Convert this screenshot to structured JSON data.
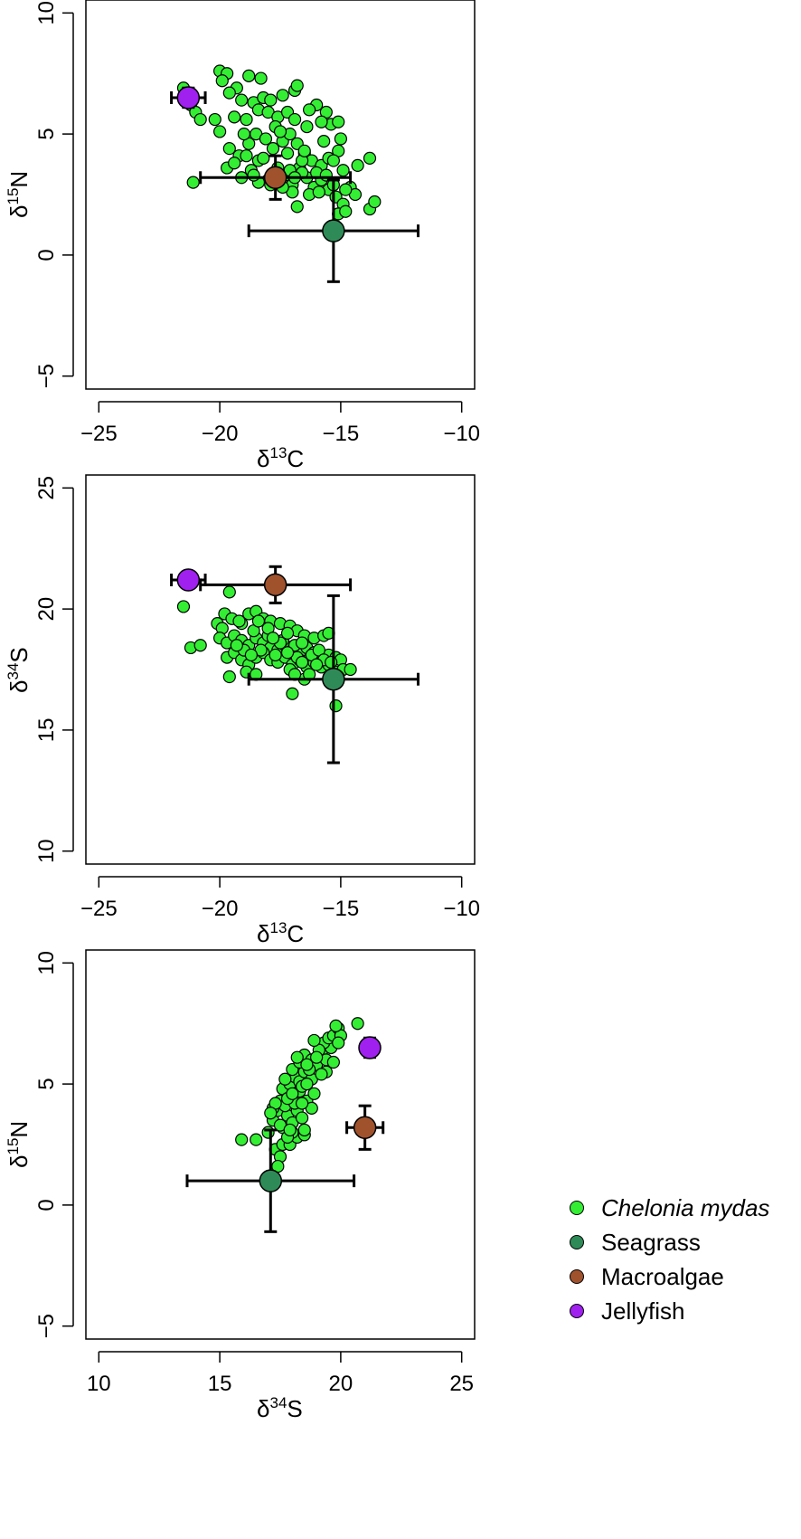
{
  "colors": {
    "chelonia": "#33ee33",
    "seagrass": "#2e8b57",
    "macroalgae": "#a0522d",
    "jellyfish": "#a020f0"
  },
  "legend": [
    {
      "label": "Chelonia mydas",
      "color": "#33ee33",
      "italic": true
    },
    {
      "label": "Seagrass",
      "color": "#2e8b57",
      "italic": false
    },
    {
      "label": "Macroalgae",
      "color": "#a0522d",
      "italic": false
    },
    {
      "label": "Jellyfish",
      "color": "#a020f0",
      "italic": false
    }
  ],
  "chart_data": [
    {
      "type": "scatter",
      "xlabel": "δ13C",
      "ylabel": "δ15N",
      "xlim": [
        -25,
        -10
      ],
      "ylim": [
        -5,
        10
      ],
      "xticks": [
        "−25",
        "−20",
        "−15",
        "−10"
      ],
      "yticks": [
        "−5",
        "0",
        "5",
        "10"
      ],
      "points": [
        [
          -21.5,
          6.9
        ],
        [
          -21.2,
          6.2
        ],
        [
          -21.0,
          5.9
        ],
        [
          -20.8,
          5.6
        ],
        [
          -21.1,
          3.0
        ],
        [
          -20.0,
          7.6
        ],
        [
          -19.7,
          7.5
        ],
        [
          -19.9,
          7.2
        ],
        [
          -19.3,
          6.9
        ],
        [
          -18.8,
          7.4
        ],
        [
          -18.3,
          7.3
        ],
        [
          -19.6,
          6.7
        ],
        [
          -19.1,
          6.4
        ],
        [
          -18.6,
          6.3
        ],
        [
          -18.2,
          6.5
        ],
        [
          -17.9,
          6.4
        ],
        [
          -17.4,
          6.6
        ],
        [
          -16.9,
          6.8
        ],
        [
          -16.8,
          7.0
        ],
        [
          -20.2,
          5.6
        ],
        [
          -20.0,
          5.1
        ],
        [
          -19.4,
          5.7
        ],
        [
          -18.9,
          5.6
        ],
        [
          -18.4,
          6.0
        ],
        [
          -18.0,
          5.9
        ],
        [
          -17.6,
          5.7
        ],
        [
          -17.2,
          5.9
        ],
        [
          -16.9,
          5.6
        ],
        [
          -16.4,
          5.3
        ],
        [
          -16.0,
          6.2
        ],
        [
          -15.6,
          5.9
        ],
        [
          -15.4,
          5.4
        ],
        [
          -15.1,
          5.5
        ],
        [
          -19.6,
          4.4
        ],
        [
          -19.2,
          4.1
        ],
        [
          -18.8,
          4.6
        ],
        [
          -18.5,
          5.0
        ],
        [
          -18.1,
          4.8
        ],
        [
          -17.8,
          4.4
        ],
        [
          -17.4,
          4.7
        ],
        [
          -17.1,
          5.0
        ],
        [
          -16.8,
          4.6
        ],
        [
          -16.5,
          4.2
        ],
        [
          -16.2,
          3.9
        ],
        [
          -15.8,
          3.7
        ],
        [
          -15.5,
          4.0
        ],
        [
          -15.1,
          4.3
        ],
        [
          -14.9,
          3.5
        ],
        [
          -14.3,
          3.7
        ],
        [
          -13.8,
          4.0
        ],
        [
          -19.7,
          3.6
        ],
        [
          -19.4,
          3.8
        ],
        [
          -19.1,
          3.2
        ],
        [
          -18.7,
          3.5
        ],
        [
          -18.4,
          3.9
        ],
        [
          -18.0,
          3.1
        ],
        [
          -17.6,
          3.6
        ],
        [
          -17.3,
          3.3
        ],
        [
          -17.0,
          2.9
        ],
        [
          -16.7,
          3.6
        ],
        [
          -16.4,
          3.2
        ],
        [
          -16.1,
          2.8
        ],
        [
          -15.8,
          3.1
        ],
        [
          -15.5,
          2.7
        ],
        [
          -15.2,
          2.4
        ],
        [
          -14.9,
          2.1
        ],
        [
          -14.6,
          2.8
        ],
        [
          -14.4,
          2.5
        ],
        [
          -13.8,
          1.9
        ],
        [
          -13.6,
          2.2
        ],
        [
          -17.0,
          2.6
        ],
        [
          -16.8,
          2.0
        ],
        [
          -16.3,
          2.5
        ],
        [
          -15.9,
          2.6
        ],
        [
          -15.1,
          1.7
        ],
        [
          -14.8,
          1.8
        ],
        [
          -18.4,
          3.0
        ],
        [
          -17.9,
          2.9
        ],
        [
          -17.1,
          3.5
        ],
        [
          -16.6,
          3.9
        ],
        [
          -16.0,
          3.4
        ],
        [
          -15.3,
          2.9
        ],
        [
          -14.8,
          2.7
        ],
        [
          -18.9,
          4.1
        ],
        [
          -17.2,
          4.2
        ],
        [
          -16.5,
          4.3
        ],
        [
          -15.7,
          4.7
        ],
        [
          -15.0,
          4.8
        ],
        [
          -17.7,
          5.3
        ],
        [
          -16.3,
          6.0
        ],
        [
          -16.6,
          3.4
        ],
        [
          -17.4,
          2.8
        ],
        [
          -18.2,
          4.0
        ],
        [
          -19.0,
          5.0
        ],
        [
          -17.5,
          5.1
        ],
        [
          -15.8,
          5.5
        ],
        [
          -16.9,
          3.2
        ],
        [
          -15.6,
          3.3
        ],
        [
          -15.3,
          3.9
        ],
        [
          -18.6,
          3.3
        ]
      ],
      "sources": [
        {
          "name": "Seagrass",
          "x": -15.3,
          "y": 1.0,
          "xerr": 3.5,
          "yerr": 2.1
        },
        {
          "name": "Macroalgae",
          "x": -17.7,
          "y": 3.2,
          "xerr": 3.1,
          "yerr": 0.9
        },
        {
          "name": "Jellyfish",
          "x": -21.3,
          "y": 6.5,
          "xerr": 0.7,
          "yerr": 0.4
        }
      ]
    },
    {
      "type": "scatter",
      "xlabel": "δ13C",
      "ylabel": "δ34S",
      "xlim": [
        -25,
        -10
      ],
      "ylim": [
        10,
        25
      ],
      "xticks": [
        "−25",
        "−20",
        "−15",
        "−10"
      ],
      "yticks": [
        "10",
        "15",
        "20",
        "25"
      ],
      "points": [
        [
          -21.5,
          20.1
        ],
        [
          -21.2,
          18.4
        ],
        [
          -20.8,
          18.5
        ],
        [
          -19.6,
          20.7
        ],
        [
          -20.1,
          19.4
        ],
        [
          -19.9,
          19.2
        ],
        [
          -19.8,
          19.8
        ],
        [
          -19.5,
          19.6
        ],
        [
          -19.1,
          19.4
        ],
        [
          -18.8,
          19.8
        ],
        [
          -18.5,
          19.9
        ],
        [
          -18.2,
          19.6
        ],
        [
          -17.9,
          19.5
        ],
        [
          -17.5,
          19.4
        ],
        [
          -17.1,
          19.3
        ],
        [
          -16.8,
          19.1
        ],
        [
          -16.5,
          18.9
        ],
        [
          -16.1,
          18.8
        ],
        [
          -15.7,
          18.9
        ],
        [
          -15.5,
          19.0
        ],
        [
          -20.0,
          18.8
        ],
        [
          -19.7,
          18.6
        ],
        [
          -19.4,
          18.9
        ],
        [
          -19.1,
          18.7
        ],
        [
          -18.8,
          18.5
        ],
        [
          -18.5,
          18.8
        ],
        [
          -18.2,
          18.6
        ],
        [
          -17.9,
          18.4
        ],
        [
          -17.6,
          18.3
        ],
        [
          -17.3,
          18.5
        ],
        [
          -17.0,
          18.3
        ],
        [
          -16.7,
          18.2
        ],
        [
          -16.4,
          18.4
        ],
        [
          -16.1,
          18.2
        ],
        [
          -15.8,
          18.0
        ],
        [
          -15.5,
          18.1
        ],
        [
          -15.2,
          18.0
        ],
        [
          -15.0,
          17.9
        ],
        [
          -19.7,
          18.0
        ],
        [
          -19.4,
          18.2
        ],
        [
          -19.1,
          17.9
        ],
        [
          -18.8,
          17.7
        ],
        [
          -18.5,
          18.0
        ],
        [
          -18.2,
          18.2
        ],
        [
          -17.9,
          17.9
        ],
        [
          -17.6,
          17.8
        ],
        [
          -17.3,
          18.0
        ],
        [
          -17.0,
          17.7
        ],
        [
          -16.7,
          17.9
        ],
        [
          -16.4,
          17.6
        ],
        [
          -16.1,
          17.8
        ],
        [
          -15.8,
          17.6
        ],
        [
          -15.5,
          17.7
        ],
        [
          -15.2,
          17.4
        ],
        [
          -14.9,
          17.5
        ],
        [
          -14.6,
          17.5
        ],
        [
          -19.6,
          17.2
        ],
        [
          -18.9,
          17.4
        ],
        [
          -18.5,
          17.3
        ],
        [
          -17.0,
          16.5
        ],
        [
          -16.5,
          17.1
        ],
        [
          -15.2,
          16.0
        ],
        [
          -18.0,
          18.9
        ],
        [
          -17.4,
          18.7
        ],
        [
          -16.9,
          18.5
        ],
        [
          -16.6,
          18.6
        ],
        [
          -16.2,
          18.1
        ],
        [
          -15.9,
          18.3
        ],
        [
          -18.6,
          19.1
        ],
        [
          -18.0,
          19.2
        ],
        [
          -17.2,
          19.0
        ],
        [
          -19.2,
          19.5
        ],
        [
          -18.3,
          18.3
        ],
        [
          -17.7,
          18.1
        ],
        [
          -17.1,
          17.5
        ],
        [
          -16.3,
          17.3
        ],
        [
          -15.7,
          17.9
        ],
        [
          -19.0,
          18.3
        ],
        [
          -18.7,
          18.1
        ],
        [
          -17.5,
          18.6
        ],
        [
          -16.8,
          18.0
        ],
        [
          -16.0,
          17.7
        ],
        [
          -15.4,
          17.8
        ],
        [
          -15.1,
          17.2
        ],
        [
          -18.4,
          19.5
        ],
        [
          -17.8,
          18.8
        ],
        [
          -17.2,
          18.2
        ],
        [
          -16.6,
          17.8
        ],
        [
          -19.3,
          18.5
        ],
        [
          -16.9,
          17.3
        ]
      ],
      "sources": [
        {
          "name": "Seagrass",
          "x": -15.3,
          "y": 17.1,
          "xerr": 3.5,
          "yerr": 3.45
        },
        {
          "name": "Macroalgae",
          "x": -17.7,
          "y": 21.0,
          "xerr": 3.1,
          "yerr": 0.75
        },
        {
          "name": "Jellyfish",
          "x": -21.3,
          "y": 21.2,
          "xerr": 0.7,
          "yerr": 0.2
        }
      ]
    },
    {
      "type": "scatter",
      "xlabel": "δ34S",
      "ylabel": "δ15N",
      "xlim": [
        10,
        25
      ],
      "ylim": [
        -5,
        10
      ],
      "xticks": [
        "10",
        "15",
        "20",
        "25"
      ],
      "yticks": [
        "−5",
        "0",
        "5",
        "10"
      ],
      "points": [
        [
          15.9,
          2.7
        ],
        [
          16.5,
          2.7
        ],
        [
          17.0,
          3.0
        ],
        [
          17.3,
          2.3
        ],
        [
          17.5,
          2.0
        ],
        [
          17.6,
          2.5
        ],
        [
          17.4,
          1.6
        ],
        [
          17.9,
          2.5
        ],
        [
          18.2,
          2.8
        ],
        [
          18.5,
          2.9
        ],
        [
          18.5,
          3.1
        ],
        [
          17.2,
          3.5
        ],
        [
          17.4,
          3.9
        ],
        [
          17.6,
          3.2
        ],
        [
          17.8,
          3.7
        ],
        [
          18.0,
          3.4
        ],
        [
          18.2,
          3.9
        ],
        [
          18.4,
          3.6
        ],
        [
          17.2,
          4.0
        ],
        [
          17.5,
          4.3
        ],
        [
          17.7,
          4.1
        ],
        [
          17.9,
          4.5
        ],
        [
          18.1,
          4.2
        ],
        [
          18.3,
          4.7
        ],
        [
          18.6,
          4.3
        ],
        [
          17.6,
          4.8
        ],
        [
          17.9,
          5.0
        ],
        [
          18.1,
          5.3
        ],
        [
          18.3,
          5.1
        ],
        [
          18.5,
          5.5
        ],
        [
          18.8,
          5.2
        ],
        [
          18.0,
          5.6
        ],
        [
          18.3,
          5.9
        ],
        [
          18.5,
          6.2
        ],
        [
          18.8,
          6.0
        ],
        [
          19.0,
          5.8
        ],
        [
          19.2,
          6.3
        ],
        [
          19.4,
          6.0
        ],
        [
          19.6,
          6.5
        ],
        [
          19.3,
          6.7
        ],
        [
          19.5,
          6.9
        ],
        [
          19.7,
          7.0
        ],
        [
          19.9,
          7.3
        ],
        [
          20.0,
          7.0
        ],
        [
          19.9,
          6.7
        ],
        [
          20.7,
          7.5
        ],
        [
          18.0,
          3.0
        ],
        [
          17.3,
          4.2
        ],
        [
          17.8,
          4.4
        ],
        [
          18.4,
          4.9
        ],
        [
          18.7,
          5.6
        ],
        [
          19.1,
          6.4
        ],
        [
          18.9,
          4.6
        ],
        [
          18.2,
          6.1
        ],
        [
          17.7,
          5.2
        ],
        [
          18.6,
          5.8
        ],
        [
          19.4,
          5.5
        ],
        [
          17.1,
          3.8
        ],
        [
          18.8,
          4.0
        ],
        [
          19.7,
          5.9
        ],
        [
          17.5,
          3.3
        ],
        [
          18.0,
          4.6
        ],
        [
          18.9,
          6.8
        ],
        [
          17.8,
          2.8
        ],
        [
          19.2,
          5.4
        ],
        [
          18.4,
          4.2
        ],
        [
          17.9,
          3.1
        ],
        [
          18.6,
          5.0
        ],
        [
          19.0,
          6.1
        ],
        [
          19.8,
          7.4
        ]
      ],
      "sources": [
        {
          "name": "Seagrass",
          "x": 17.1,
          "y": 1.0,
          "xerr": 3.45,
          "yerr": 2.1
        },
        {
          "name": "Macroalgae",
          "x": 21.0,
          "y": 3.2,
          "xerr": 0.75,
          "yerr": 0.9
        },
        {
          "name": "Jellyfish",
          "x": 21.2,
          "y": 6.5,
          "xerr": 0.2,
          "yerr": 0.4
        }
      ]
    }
  ]
}
